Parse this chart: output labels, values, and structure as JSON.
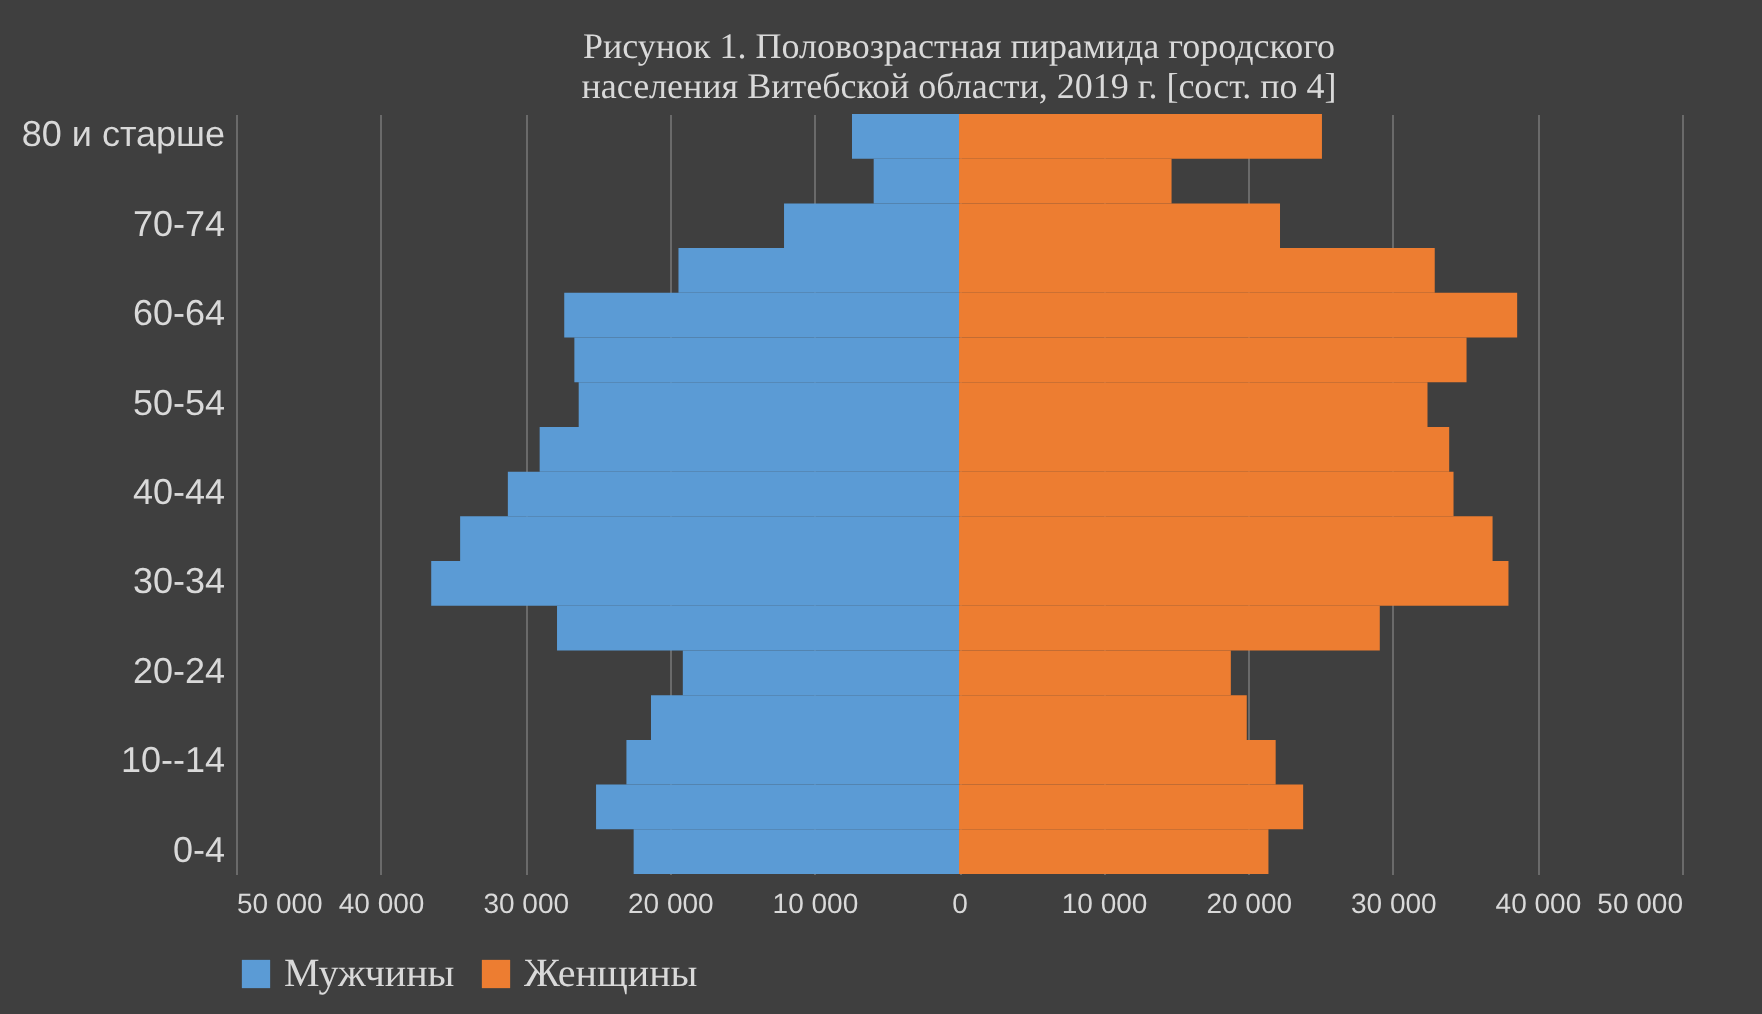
{
  "chart_data": {
    "type": "bar",
    "orientation": "horizontal",
    "title": "Рисунок 1. Половозрастная пирамида городского населения Витебской области, 2019 г. [сост. по 4]",
    "categories": [
      "80 и старше",
      null,
      "70-74",
      null,
      "60-64",
      null,
      "50-54",
      null,
      "40-44",
      null,
      "30-34",
      null,
      "20-24",
      null,
      "10--14",
      null,
      "0-4"
    ],
    "series": [
      {
        "name": "Мужчины",
        "color": "#5b9bd5",
        "values": [
          -7400,
          -5900,
          -12100,
          -19400,
          -27300,
          -26600,
          -26300,
          -29000,
          -31200,
          -34500,
          -36500,
          -27800,
          -19100,
          -21300,
          -23000,
          -25100,
          -22500
        ]
      },
      {
        "name": "Женщины",
        "color": "#ed7d31",
        "values": [
          25100,
          14700,
          22200,
          32900,
          38600,
          35100,
          32400,
          33900,
          34200,
          36900,
          38000,
          29100,
          18800,
          19900,
          21900,
          23800,
          21400
        ]
      }
    ],
    "xlim": [
      -50000,
      50000
    ],
    "xticks": [
      {
        "value": -50000,
        "label": "50 000"
      },
      {
        "value": -40000,
        "label": "40 000"
      },
      {
        "value": -30000,
        "label": "30 000"
      },
      {
        "value": -20000,
        "label": "20 000"
      },
      {
        "value": -10000,
        "label": "10 000"
      },
      0,
      {
        "value": 10000,
        "label": "10 000"
      },
      {
        "value": 20000,
        "label": "20 000"
      },
      {
        "value": 30000,
        "label": "30 000"
      },
      {
        "value": 40000,
        "label": "40 000"
      },
      {
        "value": 50000,
        "label": "50 000"
      }
    ],
    "grid": "x",
    "legend": "bottom",
    "stacked": true
  }
}
